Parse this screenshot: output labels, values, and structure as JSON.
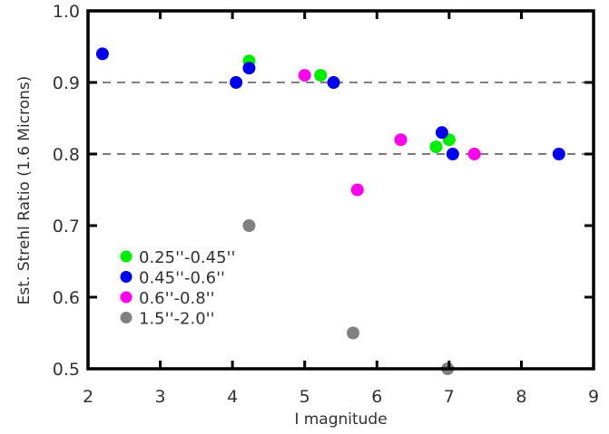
{
  "chart_data": {
    "type": "scatter",
    "title": "",
    "xlabel": "I magnitude",
    "ylabel": "Est. Strehl Ratio (1.6 Microns)",
    "xlim": [
      2,
      9
    ],
    "ylim": [
      0.5,
      1.0
    ],
    "x_ticks": [
      "2",
      "3",
      "4",
      "5",
      "6",
      "7",
      "8",
      "9"
    ],
    "y_ticks": [
      "0.5",
      "0.6",
      "0.7",
      "0.8",
      "0.9",
      "1.0"
    ],
    "reference_lines": [
      0.9,
      0.8
    ],
    "grid": false,
    "legend_position": "lower-left inside",
    "series": [
      {
        "name": "0.25''-0.45''",
        "color": "#00ee00",
        "points": [
          [
            4.23,
            0.93
          ],
          [
            5.22,
            0.91
          ],
          [
            6.82,
            0.81
          ],
          [
            7.0,
            0.82
          ]
        ]
      },
      {
        "name": "0.45''-0.6''",
        "color": "#0000ee",
        "points": [
          [
            2.2,
            0.94
          ],
          [
            4.05,
            0.9
          ],
          [
            4.23,
            0.92
          ],
          [
            5.4,
            0.9
          ],
          [
            6.9,
            0.83
          ],
          [
            7.05,
            0.8
          ],
          [
            8.52,
            0.8
          ]
        ]
      },
      {
        "name": "0.6''-0.8''",
        "color": "#ff00ee",
        "points": [
          [
            5.0,
            0.91
          ],
          [
            6.33,
            0.82
          ],
          [
            5.73,
            0.75
          ],
          [
            7.35,
            0.8
          ]
        ]
      },
      {
        "name": "1.5''-2.0''",
        "color": "#808080",
        "points": [
          [
            4.23,
            0.7
          ],
          [
            5.67,
            0.55
          ],
          [
            6.98,
            0.5
          ]
        ]
      }
    ]
  },
  "labels": {
    "xlabel": "I magnitude",
    "ylabel": "Est. Strehl Ratio (1.6 Microns)",
    "legend": [
      "0.25''-0.45''",
      "0.45''-0.6''",
      "0.6''-0.8''",
      "1.5''-2.0''"
    ]
  }
}
